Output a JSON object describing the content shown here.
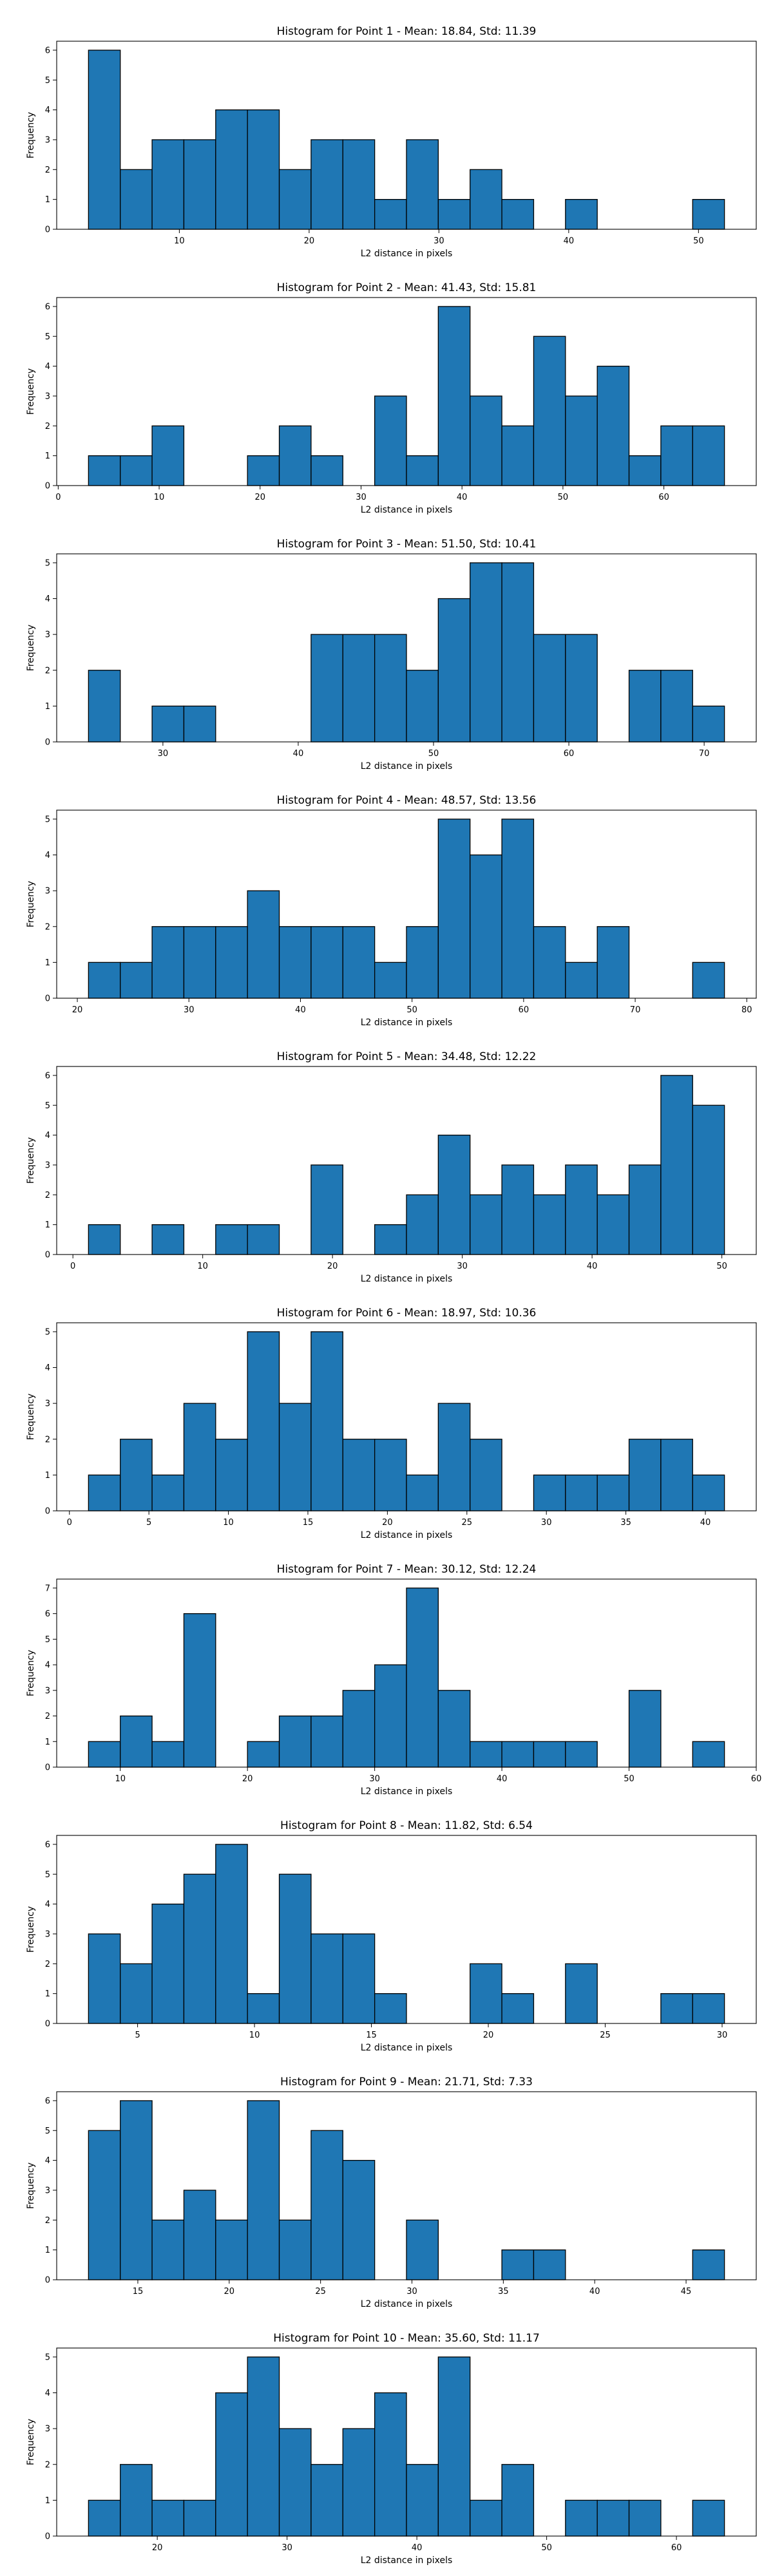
{
  "chart_data": [
    {
      "type": "bar",
      "title": "Histogram for Point 1 - Mean: 18.84, Std: 11.39",
      "xlabel": "L2 distance in pixels",
      "ylabel": "Frequency",
      "bin_start": 3.0,
      "bin_width": 2.45,
      "values": [
        6,
        2,
        3,
        3,
        4,
        4,
        2,
        3,
        3,
        1,
        3,
        1,
        2,
        1,
        0,
        1,
        0,
        0,
        0,
        1
      ],
      "xticks": [
        10,
        20,
        30,
        40,
        50
      ],
      "yticks": [
        0,
        1,
        2,
        3,
        4,
        5,
        6
      ],
      "xlim": [
        0.55,
        54.45
      ],
      "ylim": [
        0,
        6.3
      ]
    },
    {
      "type": "bar",
      "title": "Histogram for Point 2 - Mean: 41.43, Std: 15.81",
      "xlabel": "L2 distance in pixels",
      "ylabel": "Frequency",
      "bin_start": 3.0,
      "bin_width": 3.15,
      "values": [
        1,
        1,
        2,
        0,
        0,
        1,
        2,
        1,
        0,
        3,
        1,
        6,
        3,
        2,
        5,
        3,
        4,
        1,
        2,
        2
      ],
      "xticks": [
        0,
        10,
        20,
        30,
        40,
        50,
        60
      ],
      "yticks": [
        0,
        1,
        2,
        3,
        4,
        5,
        6
      ],
      "xlim": [
        -0.15,
        69.15
      ],
      "ylim": [
        0,
        6.3
      ]
    },
    {
      "type": "bar",
      "title": "Histogram for Point 3 - Mean: 51.50, Std: 10.41",
      "xlabel": "L2 distance in pixels",
      "ylabel": "Frequency",
      "bin_start": 24.5,
      "bin_width": 2.35,
      "values": [
        2,
        0,
        1,
        1,
        0,
        0,
        0,
        3,
        3,
        3,
        2,
        4,
        5,
        5,
        3,
        3,
        0,
        2,
        2,
        1
      ],
      "xticks": [
        30,
        40,
        50,
        60,
        70
      ],
      "yticks": [
        0,
        1,
        2,
        3,
        4,
        5
      ],
      "xlim": [
        22.15,
        73.85
      ],
      "ylim": [
        0,
        5.25
      ]
    },
    {
      "type": "bar",
      "title": "Histogram for Point 4 - Mean: 48.57, Std: 13.56",
      "xlabel": "L2 distance in pixels",
      "ylabel": "Frequency",
      "bin_start": 21.0,
      "bin_width": 2.85,
      "values": [
        1,
        1,
        2,
        2,
        2,
        3,
        2,
        2,
        2,
        1,
        2,
        5,
        4,
        5,
        2,
        1,
        2,
        0,
        0,
        1
      ],
      "xticks": [
        20,
        30,
        40,
        50,
        60,
        70,
        80
      ],
      "yticks": [
        0,
        1,
        2,
        3,
        4,
        5
      ],
      "xlim": [
        18.15,
        80.85
      ],
      "ylim": [
        0,
        5.25
      ]
    },
    {
      "type": "bar",
      "title": "Histogram for Point 5 - Mean: 34.48, Std: 12.22",
      "xlabel": "L2 distance in pixels",
      "ylabel": "Frequency",
      "bin_start": 1.2,
      "bin_width": 2.45,
      "values": [
        1,
        0,
        1,
        0,
        1,
        1,
        0,
        3,
        0,
        1,
        2,
        4,
        2,
        3,
        2,
        3,
        2,
        3,
        6,
        5
      ],
      "xticks": [
        0,
        10,
        20,
        30,
        40,
        50
      ],
      "yticks": [
        0,
        1,
        2,
        3,
        4,
        5,
        6
      ],
      "xlim": [
        -1.25,
        52.65
      ],
      "ylim": [
        0,
        6.3
      ]
    },
    {
      "type": "bar",
      "title": "Histogram for Point 6 - Mean: 18.97, Std: 10.36",
      "xlabel": "L2 distance in pixels",
      "ylabel": "Frequency",
      "bin_start": 1.2,
      "bin_width": 2.0,
      "values": [
        1,
        2,
        1,
        3,
        2,
        5,
        3,
        5,
        2,
        2,
        1,
        3,
        2,
        0,
        1,
        1,
        1,
        2,
        2,
        1
      ],
      "xticks": [
        0,
        5,
        10,
        15,
        20,
        25,
        30,
        35,
        40
      ],
      "yticks": [
        0,
        1,
        2,
        3,
        4,
        5
      ],
      "xlim": [
        -0.8,
        43.2
      ],
      "ylim": [
        0,
        5.25
      ]
    },
    {
      "type": "bar",
      "title": "Histogram for Point 7 - Mean: 30.12, Std: 12.24",
      "xlabel": "L2 distance in pixels",
      "ylabel": "Frequency",
      "bin_start": 7.5,
      "bin_width": 2.5,
      "values": [
        1,
        2,
        1,
        6,
        0,
        1,
        2,
        2,
        3,
        4,
        7,
        3,
        1,
        1,
        1,
        1,
        0,
        3,
        0,
        1
      ],
      "xticks": [
        10,
        20,
        30,
        40,
        50,
        60
      ],
      "yticks": [
        0,
        1,
        2,
        3,
        4,
        5,
        6,
        7
      ],
      "xlim": [
        5.0,
        60.0
      ],
      "ylim": [
        0,
        7.35
      ]
    },
    {
      "type": "bar",
      "title": "Histogram for Point 8 - Mean: 11.82, Std: 6.54",
      "xlabel": "L2 distance in pixels",
      "ylabel": "Frequency",
      "bin_start": 2.9,
      "bin_width": 1.36,
      "values": [
        3,
        2,
        4,
        5,
        6,
        1,
        5,
        3,
        3,
        1,
        0,
        0,
        2,
        1,
        0,
        2,
        0,
        0,
        1,
        1
      ],
      "xticks": [
        5,
        10,
        15,
        20,
        25,
        30
      ],
      "yticks": [
        0,
        1,
        2,
        3,
        4,
        5,
        6
      ],
      "xlim": [
        1.54,
        31.46
      ],
      "ylim": [
        0,
        6.3
      ]
    },
    {
      "type": "bar",
      "title": "Histogram for Point 9 - Mean: 21.71, Std: 7.33",
      "xlabel": "L2 distance in pixels",
      "ylabel": "Frequency",
      "bin_start": 12.3,
      "bin_width": 1.74,
      "values": [
        5,
        6,
        2,
        3,
        2,
        6,
        2,
        5,
        4,
        0,
        2,
        0,
        0,
        1,
        1,
        0,
        0,
        0,
        0,
        1
      ],
      "xticks": [
        15,
        20,
        25,
        30,
        35,
        40,
        45
      ],
      "yticks": [
        0,
        1,
        2,
        3,
        4,
        5,
        6
      ],
      "xlim": [
        10.56,
        48.84
      ],
      "ylim": [
        0,
        6.3
      ]
    },
    {
      "type": "bar",
      "title": "Histogram for Point 10 - Mean: 35.60, Std: 11.17",
      "xlabel": "L2 distance in pixels",
      "ylabel": "Frequency",
      "bin_start": 14.7,
      "bin_width": 2.45,
      "values": [
        1,
        2,
        1,
        1,
        4,
        5,
        3,
        2,
        3,
        4,
        2,
        5,
        1,
        2,
        0,
        1,
        1,
        1,
        0,
        1
      ],
      "xticks": [
        20,
        30,
        40,
        50,
        60
      ],
      "yticks": [
        0,
        1,
        2,
        3,
        4,
        5
      ],
      "xlim": [
        12.25,
        66.15
      ],
      "ylim": [
        0,
        5.25
      ]
    }
  ],
  "colors": {
    "bar_fill": "#1f77b4",
    "bar_edge": "#000000",
    "axis": "#000000"
  }
}
